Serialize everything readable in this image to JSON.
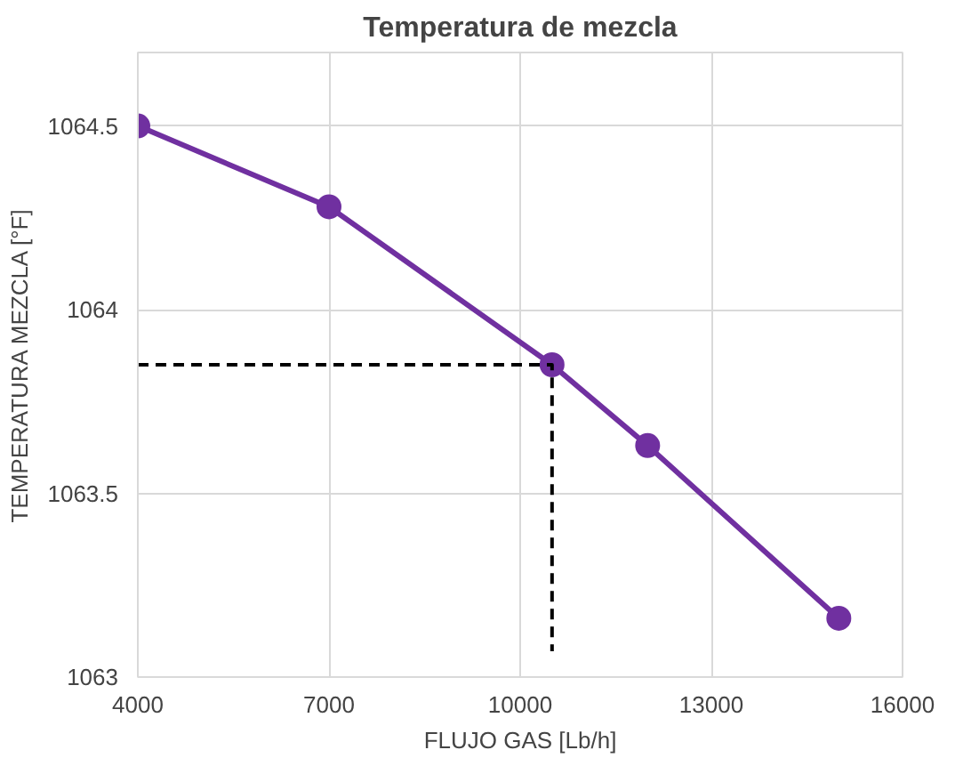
{
  "chart_data": {
    "type": "line",
    "title": "Temperatura de mezcla",
    "xlabel": "FLUJO GAS [Lb/h]",
    "ylabel": "TEMPERATURA MEZCLA [°F]",
    "series": [
      {
        "color": "#7030a0",
        "marker": "circle",
        "line_style": "solid",
        "x": [
          4000,
          7000,
          10500,
          12000,
          15000
        ],
        "values": [
          1064.5,
          1064.28,
          1063.85,
          1063.63,
          1063.16
        ]
      },
      {
        "color": "#000000",
        "marker": "none",
        "line_style": "dashed",
        "x": [
          4000,
          10500,
          10500
        ],
        "values": [
          1063.85,
          1063.85,
          1063.07
        ]
      }
    ],
    "xlim": [
      4000,
      16000
    ],
    "xticks": [
      4000,
      7000,
      10000,
      13000,
      16000
    ],
    "ylim": [
      1063,
      1064.7
    ],
    "yticks": [
      1063,
      1063.5,
      1064,
      1064.5
    ],
    "grid": true
  }
}
